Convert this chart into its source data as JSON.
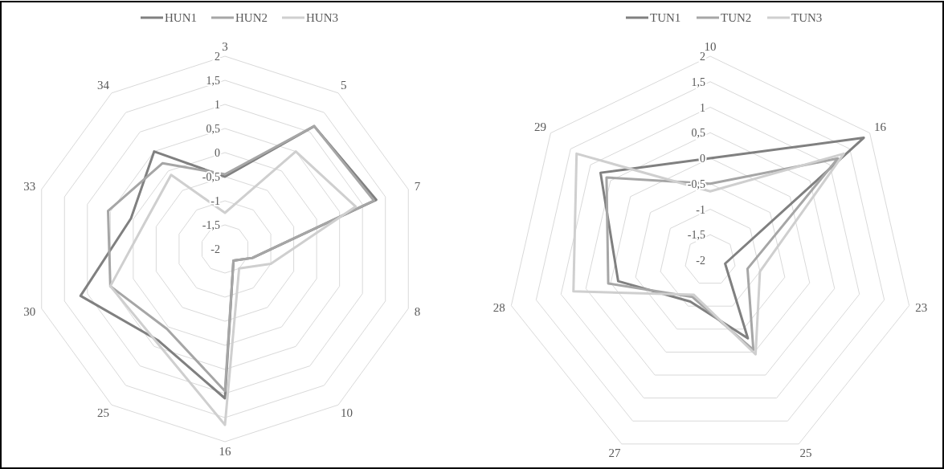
{
  "chart_data": [
    {
      "type": "radar",
      "categories": [
        "3",
        "5",
        "7",
        "8",
        "10",
        "16",
        "25",
        "30",
        "33",
        "34"
      ],
      "series": [
        {
          "name": "HUN1",
          "color": "#808080",
          "values": [
            -0.5,
            1.15,
            1.3,
            -1.4,
            -1.7,
            1.1,
            0.35,
            1.15,
            0.05,
            0.5
          ]
        },
        {
          "name": "HUN2",
          "color": "#a6a6a6",
          "values": [
            -0.45,
            1.15,
            1.25,
            -1.4,
            -1.7,
            0.95,
            0.05,
            0.5,
            0.55,
            0.2
          ]
        },
        {
          "name": "HUN3",
          "color": "#cfcfcf",
          "values": [
            -1.25,
            0.5,
            0.85,
            -1.0,
            -1.5,
            1.65,
            0.4,
            0.5,
            -0.25,
            -0.1
          ]
        }
      ],
      "ylim": [
        -2,
        2
      ],
      "yticks": [
        -2,
        {
          "value": -1.5,
          "label": "-1,5"
        },
        -1,
        {
          "value": -0.5,
          "label": "-0,5"
        },
        0,
        {
          "value": 0.5,
          "label": "0,5"
        },
        1,
        {
          "value": 1.5,
          "label": "1,5"
        },
        2
      ],
      "grid": true,
      "legend": "top"
    },
    {
      "type": "radar",
      "categories": [
        "10",
        "16",
        "23",
        "25",
        "27",
        "28",
        "29"
      ],
      "series": [
        {
          "name": "TUN1",
          "color": "#808080",
          "values": [
            0,
            1.85,
            -1.7,
            -0.3,
            -1.1,
            -0.15,
            0.75
          ]
        },
        {
          "name": "TUN2",
          "color": "#a6a6a6",
          "values": [
            -0.5,
            1.2,
            -1.25,
            -0.05,
            -1.2,
            0.05,
            0.6
          ]
        },
        {
          "name": "TUN3",
          "color": "#cfcfcf",
          "values": [
            -0.65,
            1.35,
            -1.0,
            0.05,
            -1.25,
            0.75,
            1.35
          ]
        }
      ],
      "ylim": [
        -2,
        2
      ],
      "yticks": [
        -2,
        {
          "value": -1.5,
          "label": "-1,5"
        },
        -1,
        {
          "value": -0.5,
          "label": "-0,5"
        },
        0,
        {
          "value": 0.5,
          "label": "0,5"
        },
        1,
        {
          "value": 1.5,
          "label": "1,5"
        },
        2
      ],
      "grid": true,
      "legend": "top"
    }
  ]
}
